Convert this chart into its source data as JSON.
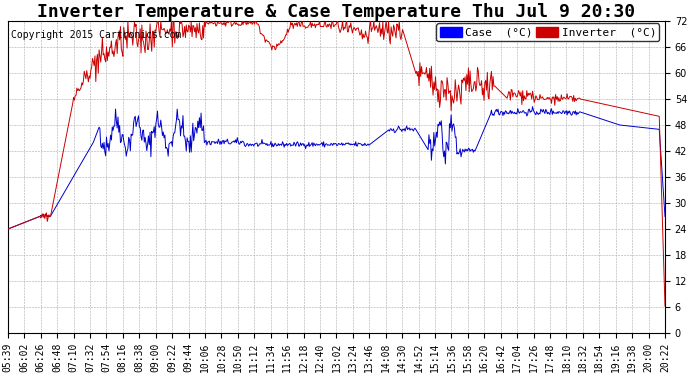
{
  "title": "Inverter Temperature & Case Temperature Thu Jul 9 20:30",
  "copyright": "Copyright 2015 Cartronics.com",
  "ylim": [
    0.0,
    72.0
  ],
  "yticks": [
    0.0,
    6.0,
    12.0,
    18.0,
    24.0,
    30.0,
    36.0,
    42.0,
    48.0,
    54.0,
    60.0,
    66.0,
    72.0
  ],
  "legend_labels": [
    "Case  (°C)",
    "Inverter  (°C)"
  ],
  "legend_colors": [
    "#0000ff",
    "#cc0000"
  ],
  "line_colors": [
    "#0000cc",
    "#cc0000"
  ],
  "bg_color": "#ffffff",
  "grid_color": "#aaaaaa",
  "title_fontsize": 13,
  "tick_fontsize": 7,
  "copyright_fontsize": 7,
  "x_tick_labels": [
    "05:39",
    "06:02",
    "06:26",
    "06:48",
    "07:10",
    "07:32",
    "07:54",
    "08:16",
    "08:38",
    "09:00",
    "09:22",
    "09:44",
    "10:06",
    "10:28",
    "10:50",
    "11:12",
    "11:34",
    "11:56",
    "12:18",
    "12:40",
    "13:02",
    "13:24",
    "13:46",
    "14:08",
    "14:30",
    "14:52",
    "15:14",
    "15:36",
    "15:58",
    "16:20",
    "16:42",
    "17:04",
    "17:26",
    "17:48",
    "18:10",
    "18:32",
    "18:54",
    "19:16",
    "19:38",
    "20:00",
    "20:22"
  ]
}
